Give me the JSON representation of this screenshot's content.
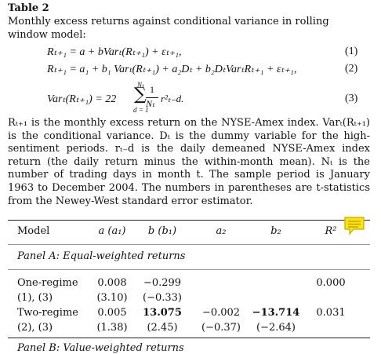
{
  "header": {
    "title": "Table 2",
    "caption": "Monthly excess returns against conditional variance in rolling window model:"
  },
  "equations": [
    {
      "text": "Rₜ₊₁ = a + bVarₜ(Rₜ₊₁) + εₜ₊₁,",
      "number": "(1)"
    },
    {
      "text": "Rₜ₊₁ = a₁ + b₁ Varₜ(Rₜ₊₁) + a₂Dₜ + b₂DₜVarₜRₜ₊₁ + εₜ₊₁,",
      "number": "(2)"
    },
    {
      "lhs": "Varₜ(Rₜ₊₁) = 22",
      "sum_upper": "Nₜ",
      "sum_lower": "d = 1",
      "frac_num": "1",
      "frac_den": "Nₜ",
      "term": "r²ₜ₋d.",
      "number": "(3)"
    }
  ],
  "notes": "Rₜ₊₁ is the monthly excess return on the NYSE-Amex index. Varₜ(Rₜ₊₁) is the conditional variance. Dₜ is the dummy variable for the high-sentiment periods. rₜ₋d is the daily demeaned NYSE-Amex index return (the daily return minus the within-month mean). Nₜ is the number of trading days in month t. The sample period is January 1963 to December 2004. The numbers in parentheses are t-statistics from the Newey-West standard error estimator.",
  "table": {
    "columns": {
      "model": "Model",
      "a": "a (a₁)",
      "b": "b (b₁)",
      "a2": "a₂",
      "b2": "b₂",
      "r2": "R²"
    },
    "panel_a": "Panel A: Equal-weighted returns",
    "rows": [
      {
        "model": "One-regime",
        "a": "0.008",
        "b": "−0.299",
        "r2": "0.000"
      },
      {
        "model": "(1), (3)",
        "a": "(3.10)",
        "b": "(−0.33)"
      },
      {
        "model": "Two-regime",
        "a": "0.005",
        "b": "13.075",
        "a2": "−0.002",
        "b2": "−13.714",
        "r2": "0.031",
        "bold": [
          "b",
          "b2"
        ]
      },
      {
        "model": "(2), (3)",
        "a": "(1.38)",
        "b": "(2.45)",
        "a2": "(−0.37)",
        "b2": "(−2.64)"
      }
    ],
    "panel_b": "Panel B: Value-weighted returns"
  }
}
